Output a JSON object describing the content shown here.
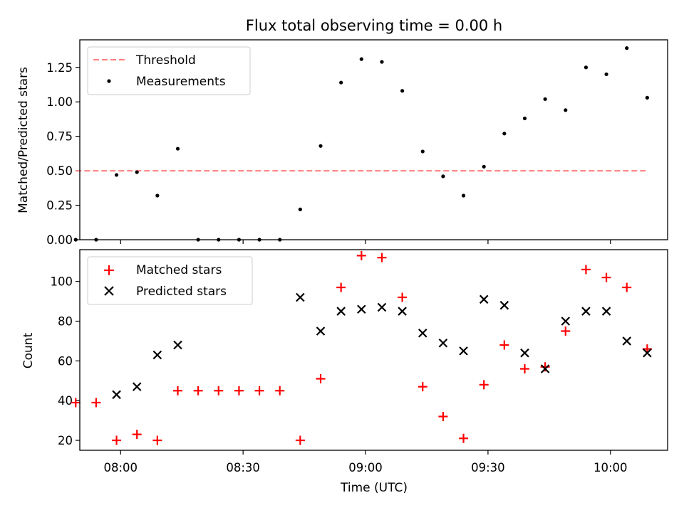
{
  "title": "Flux total observing time = 0.00 h",
  "x_axis": {
    "label": "Time (UTC)",
    "ticks": [
      {
        "t": "08:00",
        "label": "08:00"
      },
      {
        "t": "08:30",
        "label": "08:30"
      },
      {
        "t": "09:00",
        "label": "09:00"
      },
      {
        "t": "09:30",
        "label": "09:30"
      },
      {
        "t": "10:00",
        "label": "10:00"
      }
    ],
    "range": [
      "07:50",
      "10:14"
    ]
  },
  "colors": {
    "threshold": "#ff7f7f",
    "measurements": "#000000",
    "matched": "#ff0000",
    "predicted": "#000000"
  },
  "chart_data": [
    {
      "type": "scatter",
      "ylabel": "Matched/Predicted stars",
      "ylim": [
        0,
        1.45
      ],
      "yticks": [
        "0.00",
        "0.25",
        "0.50",
        "0.75",
        "1.00",
        "1.25"
      ],
      "legend_position": "top-left",
      "threshold": {
        "name": "Threshold",
        "value": 0.5,
        "x_range": [
          "07:49",
          "10:09"
        ]
      },
      "series": [
        {
          "name": "Measurements",
          "x": [
            "07:49",
            "07:54",
            "07:59",
            "08:04",
            "08:09",
            "08:14",
            "08:19",
            "08:24",
            "08:29",
            "08:34",
            "08:39",
            "08:44",
            "08:49",
            "08:54",
            "08:59",
            "09:04",
            "09:09",
            "09:14",
            "09:19",
            "09:24",
            "09:29",
            "09:34",
            "09:39",
            "09:44",
            "09:49",
            "09:54",
            "09:59",
            "10:04",
            "10:09"
          ],
          "y": [
            0,
            0,
            0.47,
            0.49,
            0.32,
            0.66,
            0,
            0,
            0,
            0,
            0,
            0.22,
            0.68,
            1.14,
            1.31,
            1.29,
            1.08,
            0.64,
            0.46,
            0.32,
            0.53,
            0.77,
            0.88,
            1.02,
            0.94,
            1.25,
            1.2,
            1.39,
            1.03
          ]
        }
      ]
    },
    {
      "type": "scatter",
      "ylabel": "Count",
      "ylim": [
        15,
        116
      ],
      "yticks": [
        "20",
        "40",
        "60",
        "80",
        "100"
      ],
      "legend_position": "top-left",
      "series": [
        {
          "name": "Matched stars",
          "marker": "+",
          "x": [
            "07:49",
            "07:54",
            "07:59",
            "08:04",
            "08:09",
            "08:14",
            "08:19",
            "08:24",
            "08:29",
            "08:34",
            "08:39",
            "08:44",
            "08:49",
            "08:54",
            "08:59",
            "09:04",
            "09:09",
            "09:14",
            "09:19",
            "09:24",
            "09:29",
            "09:34",
            "09:39",
            "09:44",
            "09:49",
            "09:54",
            "09:59",
            "10:04",
            "10:09"
          ],
          "y": [
            39,
            39,
            20,
            23,
            20,
            45,
            45,
            45,
            45,
            45,
            45,
            20,
            51,
            97,
            113,
            112,
            92,
            47,
            32,
            21,
            48,
            68,
            56,
            57,
            75,
            106,
            102,
            97,
            66
          ]
        },
        {
          "name": "Predicted stars",
          "marker": "x",
          "x": [
            "07:59",
            "08:04",
            "08:09",
            "08:14",
            "08:44",
            "08:49",
            "08:54",
            "08:59",
            "09:04",
            "09:09",
            "09:14",
            "09:19",
            "09:24",
            "09:29",
            "09:34",
            "09:39",
            "09:44",
            "09:49",
            "09:54",
            "09:59",
            "10:04",
            "10:09"
          ],
          "y": [
            43,
            47,
            63,
            68,
            92,
            75,
            85,
            86,
            87,
            85,
            74,
            69,
            65,
            91,
            88,
            64,
            56,
            80,
            85,
            85,
            70,
            64
          ]
        }
      ]
    }
  ]
}
